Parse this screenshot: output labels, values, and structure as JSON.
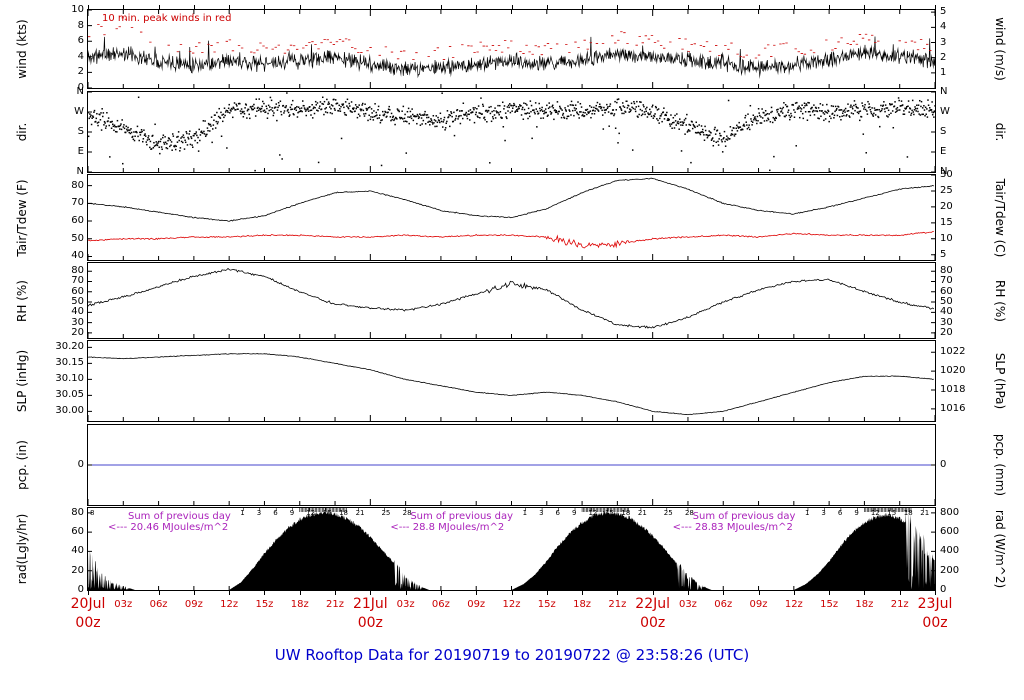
{
  "colors": {
    "trace": "#000000",
    "peak_wind": "#cc0000",
    "tdew": "#dd0000",
    "pcp_line": "#4444cc",
    "x_labels": "#cc0000",
    "title": "#0000cc",
    "sum_annotation": "#aa22bb"
  },
  "chart_data": {
    "type": "line",
    "title": "UW Rooftop Data for 20190719  to  20190722 @ 23:58:26  (UTC)",
    "x_axis": {
      "range_hours": [
        0,
        72
      ],
      "major_ticks": [
        {
          "hour": 0,
          "day": "20Jul",
          "z": "00z"
        },
        {
          "hour": 24,
          "day": "21Jul",
          "z": "00z"
        },
        {
          "hour": 48,
          "day": "22Jul",
          "z": "00z"
        },
        {
          "hour": 72,
          "day": "23Jul",
          "z": "00z"
        }
      ],
      "minor_labels": [
        "03z",
        "06z",
        "09z",
        "12z",
        "15z",
        "18z",
        "21z"
      ]
    },
    "control_hours": [
      0,
      3,
      6,
      9,
      12,
      15,
      18,
      21,
      24,
      27,
      30,
      33,
      36,
      39,
      42,
      45,
      48,
      51,
      54,
      57,
      60,
      63,
      66,
      69,
      72
    ],
    "panels": [
      {
        "id": "wind",
        "left_label": "wind (kts)",
        "right_label": "wind (m/s)",
        "ylim": [
          0,
          10
        ],
        "left_ticks": [
          {
            "label": "10",
            "v": 10
          },
          {
            "label": "8",
            "v": 8
          },
          {
            "label": "6",
            "v": 6
          },
          {
            "label": "4",
            "v": 4
          },
          {
            "label": "2",
            "v": 2
          },
          {
            "label": "0",
            "v": 0
          }
        ],
        "right_ticks": [
          {
            "label": "5",
            "v": 9.72
          },
          {
            "label": "4",
            "v": 7.78
          },
          {
            "label": "3",
            "v": 5.83
          },
          {
            "label": "2",
            "v": 3.89
          },
          {
            "label": "1",
            "v": 1.94
          }
        ],
        "annotation": "10 min. peak winds in red",
        "series": [
          {
            "name": "wind speed 10-min avg (kts)",
            "color": "#000000",
            "values": [
              4,
              4.5,
              3.5,
              3,
              3.5,
              3,
              3.5,
              4,
              3,
              2.5,
              2.5,
              3,
              3.5,
              3,
              3.5,
              4.5,
              4,
              3.5,
              3,
              2.5,
              3,
              3.5,
              4.5,
              4,
              3.5
            ]
          },
          {
            "name": "wind speed 10-min peak (kts)",
            "color": "#cc0000",
            "values": [
              7,
              8.5,
              6,
              5,
              5.5,
              5,
              5.5,
              6,
              5,
              4.5,
              4.5,
              5,
              5.5,
              5,
              5.5,
              6.5,
              6,
              5.5,
              5,
              4.5,
              5,
              5.5,
              6.5,
              6,
              5.5
            ]
          }
        ]
      },
      {
        "id": "dir",
        "left_label": "dir.",
        "right_label": "dir.",
        "ylim": [
          0,
          360
        ],
        "left_ticks": [
          {
            "label": "N",
            "v": 360
          },
          {
            "label": "W",
            "v": 270
          },
          {
            "label": "S",
            "v": 180
          },
          {
            "label": "E",
            "v": 90
          },
          {
            "label": "N",
            "v": 0
          }
        ],
        "right_ticks": [
          {
            "label": "N",
            "v": 360
          },
          {
            "label": "W",
            "v": 270
          },
          {
            "label": "S",
            "v": 180
          },
          {
            "label": "E",
            "v": 90
          },
          {
            "label": "N",
            "v": 0
          }
        ],
        "series": [
          {
            "name": "wind direction (deg)",
            "color": "#000000",
            "scatter": true,
            "values": [
              250,
              200,
              120,
              150,
              280,
              290,
              280,
              300,
              270,
              250,
              240,
              260,
              280,
              270,
              280,
              290,
              270,
              200,
              150,
              250,
              280,
              270,
              280,
              290,
              280
            ]
          }
        ]
      },
      {
        "id": "tair",
        "left_label": "Tair/Tdew (F)",
        "right_label": "Tair/Tdew (C)",
        "ylim": [
          38,
          86
        ],
        "left_ticks": [
          {
            "label": "80",
            "v": 80
          },
          {
            "label": "70",
            "v": 70
          },
          {
            "label": "60",
            "v": 60
          },
          {
            "label": "50",
            "v": 50
          },
          {
            "label": "40",
            "v": 40
          }
        ],
        "right_ticks": [
          {
            "label": "30",
            "v": 86
          },
          {
            "label": "25",
            "v": 77
          },
          {
            "label": "20",
            "v": 68
          },
          {
            "label": "15",
            "v": 59
          },
          {
            "label": "10",
            "v": 50
          },
          {
            "label": "5",
            "v": 41
          }
        ],
        "series": [
          {
            "name": "air temperature (F)",
            "color": "#000000",
            "values": [
              70,
              68,
              65,
              62,
              60,
              63,
              70,
              76,
              77,
              72,
              66,
              63,
              62,
              67,
              76,
              83,
              84,
              78,
              70,
              66,
              64,
              68,
              73,
              78,
              80
            ]
          },
          {
            "name": "dew point (F)",
            "color": "#dd0000",
            "values": [
              49,
              50,
              50,
              51,
              51,
              52,
              52,
              51,
              51,
              52,
              51,
              52,
              52,
              51,
              46,
              47,
              50,
              51,
              52,
              51,
              53,
              52,
              52,
              52,
              54
            ]
          }
        ]
      },
      {
        "id": "rh",
        "left_label": "RH (%)",
        "right_label": "RH (%)",
        "ylim": [
          15,
          88
        ],
        "left_ticks": [
          {
            "label": "80",
            "v": 80
          },
          {
            "label": "70",
            "v": 70
          },
          {
            "label": "60",
            "v": 60
          },
          {
            "label": "50",
            "v": 50
          },
          {
            "label": "40",
            "v": 40
          },
          {
            "label": "30",
            "v": 30
          },
          {
            "label": "20",
            "v": 20
          }
        ],
        "right_ticks": [
          {
            "label": "80",
            "v": 80
          },
          {
            "label": "70",
            "v": 70
          },
          {
            "label": "60",
            "v": 60
          },
          {
            "label": "50",
            "v": 50
          },
          {
            "label": "40",
            "v": 40
          },
          {
            "label": "30",
            "v": 30
          },
          {
            "label": "20",
            "v": 20
          }
        ],
        "series": [
          {
            "name": "relative humidity (%)",
            "color": "#000000",
            "values": [
              47,
              55,
              65,
              75,
              82,
              75,
              60,
              48,
              44,
              42,
              48,
              58,
              68,
              62,
              42,
              28,
              25,
              35,
              50,
              62,
              70,
              72,
              60,
              50,
              43
            ]
          }
        ]
      },
      {
        "id": "slp",
        "left_label": "SLP (inHg)",
        "right_label": "SLP (hPa)",
        "ylim": [
          29.97,
          30.22
        ],
        "left_ticks": [
          {
            "label": "30.20",
            "v": 30.2
          },
          {
            "label": "30.15",
            "v": 30.15
          },
          {
            "label": "30.10",
            "v": 30.1
          },
          {
            "label": "30.05",
            "v": 30.05
          },
          {
            "label": "30.00",
            "v": 30.0
          }
        ],
        "right_ticks": [
          {
            "label": "1022",
            "v": 30.185
          },
          {
            "label": "1020",
            "v": 30.126
          },
          {
            "label": "1018",
            "v": 30.067
          },
          {
            "label": "1016",
            "v": 30.008
          }
        ],
        "series": [
          {
            "name": "sea level pressure (inHg)",
            "color": "#000000",
            "values": [
              30.17,
              30.165,
              30.17,
              30.175,
              30.18,
              30.18,
              30.17,
              30.15,
              30.13,
              30.1,
              30.08,
              30.06,
              30.05,
              30.06,
              30.05,
              30.03,
              30.0,
              29.99,
              30.0,
              30.03,
              30.06,
              30.09,
              30.11,
              30.11,
              30.1
            ]
          }
        ]
      },
      {
        "id": "pcp",
        "left_label": "pcp. (in)",
        "right_label": "pcp. (mm)",
        "ylim": [
          -1,
          1
        ],
        "left_ticks": [
          {
            "label": "0",
            "v": 0
          }
        ],
        "right_ticks": [
          {
            "label": "0",
            "v": 0
          }
        ],
        "series": [
          {
            "name": "precipitation (in)",
            "color": "#4444cc",
            "flat": 0
          }
        ]
      },
      {
        "id": "rad",
        "left_label": "rad(Lgly/hr)",
        "right_label": "rad (W/m^2)",
        "ylim": [
          0,
          85
        ],
        "left_ticks": [
          {
            "label": "80",
            "v": 80
          },
          {
            "label": "60",
            "v": 60
          },
          {
            "label": "40",
            "v": 40
          },
          {
            "label": "20",
            "v": 20
          },
          {
            "label": "0",
            "v": 0
          }
        ],
        "right_ticks": [
          {
            "label": "800",
            "v": 80
          },
          {
            "label": "600",
            "v": 60
          },
          {
            "label": "400",
            "v": 40
          },
          {
            "label": "200",
            "v": 20
          },
          {
            "label": "0",
            "v": 0
          }
        ],
        "series": [
          {
            "name": "solar radiation (Ly/hr)",
            "color": "#000000",
            "fill": true
          }
        ],
        "hourly_values": [
          40,
          15,
          8,
          4,
          0,
          0,
          0,
          0,
          0,
          0,
          0,
          0,
          0,
          8,
          22,
          38,
          52,
          64,
          73,
          78,
          80,
          79,
          74,
          66,
          55,
          42,
          28,
          13,
          5,
          0,
          0,
          0,
          0,
          0,
          0,
          0,
          0,
          6,
          16,
          30,
          46,
          60,
          70,
          77,
          80,
          79,
          75,
          67,
          56,
          43,
          28,
          14,
          5,
          0,
          0,
          0,
          0,
          0,
          0,
          0,
          0,
          6,
          16,
          30,
          46,
          60,
          70,
          76,
          78,
          74,
          64,
          48,
          30
        ],
        "spike_ranges": [
          [
            0,
            3.5
          ],
          [
            26,
            28.5
          ],
          [
            50,
            52.5
          ],
          [
            69.5,
            71.8
          ]
        ],
        "top_markers": {
          "left_edge_label": "8",
          "labels": [
            "1",
            "3",
            "6",
            "9",
            "12",
            "15",
            "18",
            "21",
            "25",
            "28"
          ],
          "day_hour_offsets": [
            13.2,
            14.6,
            16.0,
            17.4,
            18.8,
            20.2,
            21.6,
            23.0,
            25.2,
            27.0
          ]
        },
        "sum_annotations": [
          {
            "line1": "Sum of previous day",
            "line2": "<--- 20.46 MJoules/m^2"
          },
          {
            "line1": "Sum of previous day",
            "line2": "<--- 28.8 MJoules/m^2"
          },
          {
            "line1": "Sum of previous day",
            "line2": "<--- 28.83 MJoules/m^2"
          }
        ]
      }
    ]
  }
}
